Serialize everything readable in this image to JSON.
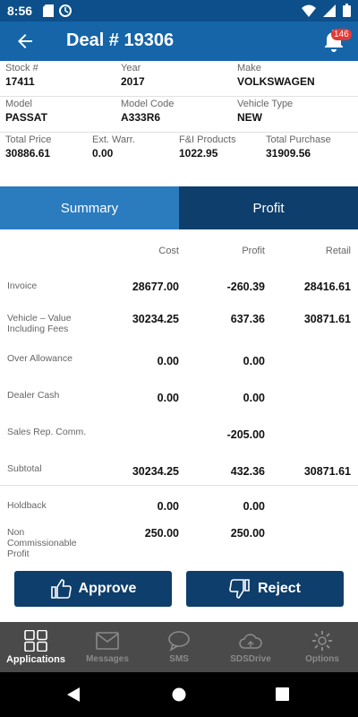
{
  "status_bar": {
    "time": "8:56"
  },
  "header": {
    "title": "Deal # 19306",
    "notification_count": "146"
  },
  "deal_info": [
    [
      {
        "label": "Stock #",
        "value": "17411"
      },
      {
        "label": "Year",
        "value": "2017"
      },
      {
        "label": "Make",
        "value": "VOLKSWAGEN"
      }
    ],
    [
      {
        "label": "Model",
        "value": "PASSAT"
      },
      {
        "label": "Model Code",
        "value": "A333R6"
      },
      {
        "label": "Vehicle Type",
        "value": "NEW"
      }
    ],
    [
      {
        "label": "Total Price",
        "value": "30886.61"
      },
      {
        "label": "Ext. Warr.",
        "value": "0.00"
      },
      {
        "label": "F&I Products",
        "value": "1022.95"
      },
      {
        "label": "Total Purchase",
        "value": "31909.56"
      }
    ]
  ],
  "tabs": {
    "summary": "Summary",
    "profit": "Profit"
  },
  "table": {
    "headers": {
      "cost": "Cost",
      "profit": "Profit",
      "retail": "Retail"
    },
    "rows": [
      {
        "label": "Invoice",
        "cost": "28677.00",
        "profit": "-260.39",
        "retail": "28416.61"
      },
      {
        "label": "Vehicle – Value Including Fees",
        "cost": "30234.25",
        "profit": "637.36",
        "retail": "30871.61"
      },
      {
        "label": "Over Allowance",
        "cost": "0.00",
        "profit": "0.00",
        "retail": ""
      },
      {
        "label": "Dealer Cash",
        "cost": "0.00",
        "profit": "0.00",
        "retail": ""
      },
      {
        "label": "Sales Rep. Comm.",
        "cost": "",
        "profit": "-205.00",
        "retail": ""
      },
      {
        "label": "Subtotal",
        "cost": "30234.25",
        "profit": "432.36",
        "retail": "30871.61"
      },
      {
        "label": "Holdback",
        "cost": "0.00",
        "profit": "0.00",
        "retail": ""
      },
      {
        "label": "Non Commissionable Profit",
        "cost": "250.00",
        "profit": "250.00",
        "retail": ""
      }
    ]
  },
  "actions": {
    "approve": "Approve",
    "reject": "Reject"
  },
  "bottom_nav": [
    {
      "label": "Applications",
      "icon": "grid-icon",
      "active": true
    },
    {
      "label": "Messages",
      "icon": "mail-icon",
      "active": false
    },
    {
      "label": "SMS",
      "icon": "chat-icon",
      "active": false
    },
    {
      "label": "SDSDrive",
      "icon": "cloud-icon",
      "active": false
    },
    {
      "label": "Options",
      "icon": "gear-icon",
      "active": false
    }
  ],
  "colors": {
    "app_bar": "#1565a8",
    "status_bar": "#0d4f8a",
    "dark_blue": "#0e3e6b",
    "summary_tab": "#2b7bbf",
    "nav_bg": "#4a4a4a"
  }
}
